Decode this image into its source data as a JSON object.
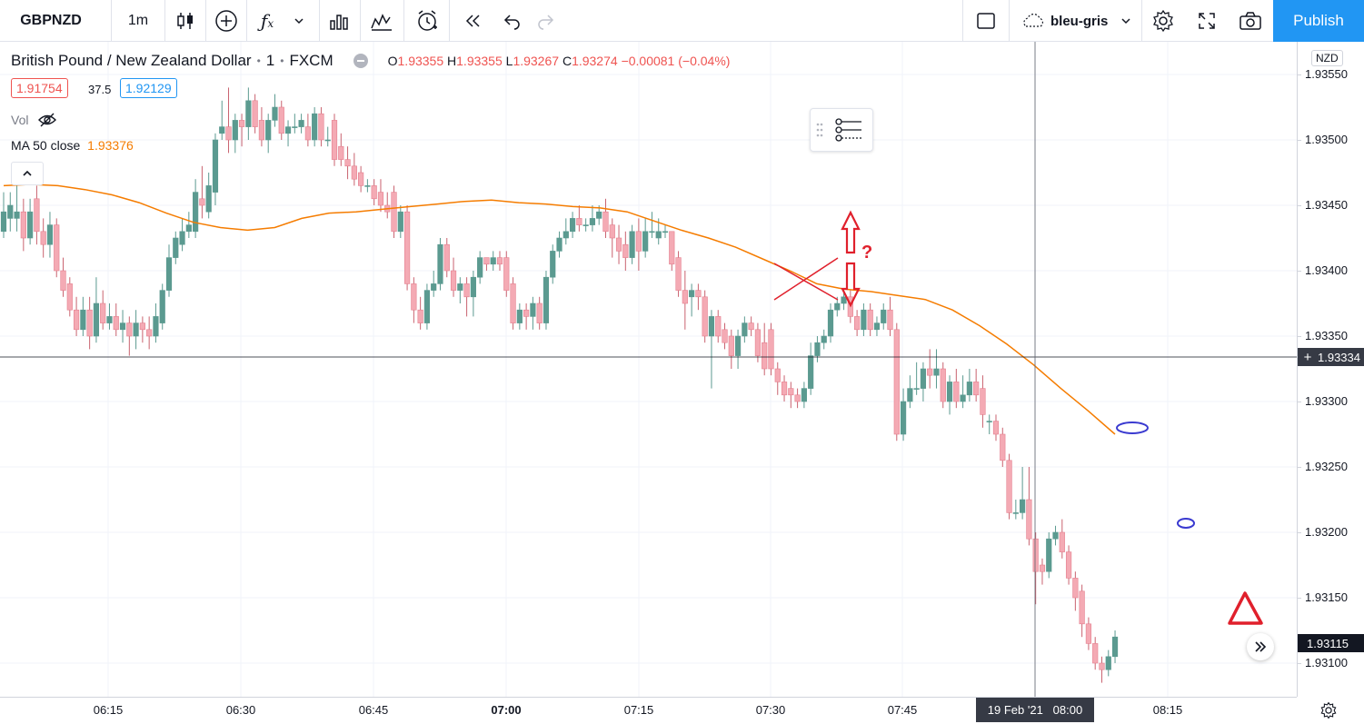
{
  "toolbar": {
    "symbol": "GBPNZD",
    "interval": "1m",
    "indicators_icon": "fx-icon",
    "layout_name": "bleu-gris",
    "publish_label": "Publish"
  },
  "legend": {
    "title": "British Pound / New Zealand Dollar",
    "interval": "1",
    "exchange": "FXCM",
    "o_label": "O",
    "o_value": "1.93355",
    "h_label": "H",
    "h_value": "1.93355",
    "l_label": "L",
    "l_value": "1.93267",
    "c_label": "C",
    "c_value": "1.93274",
    "change": "−0.00081 (−0.04%)",
    "sell_price": "1.91754",
    "spread": "37.5",
    "buy_price": "1.92129",
    "vol_label": "Vol",
    "ma_label": "MA 50 close",
    "ma_value": "1.93376"
  },
  "price_axis": {
    "currency": "NZD",
    "ticks": [
      "1.93550",
      "1.93500",
      "1.93450",
      "1.93400",
      "1.93350",
      "1.93300",
      "1.93250",
      "1.93200",
      "1.93150",
      "1.93100"
    ],
    "crosshair_price": "1.93334",
    "last_price": "1.93115"
  },
  "time_axis": {
    "ticks": [
      "06:15",
      "06:30",
      "06:45",
      "07:00",
      "07:15",
      "07:30",
      "07:45",
      "08:00",
      "08:15"
    ],
    "crosshair_label": "19 Feb '21   08:00"
  },
  "annotations": {
    "question_mark": "?"
  },
  "colors": {
    "up": "#5b9a90",
    "down": "#f4aab4",
    "ma": "#f57c00",
    "publish": "#2196f3",
    "annotation_red": "#e0202c",
    "annotation_blue": "#3a3ad0"
  },
  "chart_data": {
    "type": "candlestick",
    "symbol": "GBPNZD",
    "interval": "1m",
    "ylim": [
      1.93075,
      1.93575
    ],
    "x_ticks": [
      "06:15",
      "06:30",
      "06:45",
      "07:00",
      "07:15",
      "07:30",
      "07:45",
      "08:00",
      "08:15"
    ],
    "y_ticks": [
      1.9355,
      1.935,
      1.9345,
      1.934,
      1.9335,
      1.933,
      1.9325,
      1.932,
      1.9315,
      1.931
    ],
    "candles": [
      [
        1.9343,
        1.93445,
        1.93425,
        1.9346
      ],
      [
        1.9344,
        1.9345,
        1.9343,
        1.9346
      ],
      [
        1.9344,
        1.93445,
        1.9343,
        1.93465
      ],
      [
        1.93445,
        1.93425,
        1.93415,
        1.93455
      ],
      [
        1.93425,
        1.93445,
        1.9342,
        1.93455
      ],
      [
        1.93455,
        1.9343,
        1.9342,
        1.93465
      ],
      [
        1.9343,
        1.9342,
        1.9341,
        1.9344
      ],
      [
        1.9342,
        1.93435,
        1.9341,
        1.93445
      ],
      [
        1.93435,
        1.934,
        1.93395,
        1.9344
      ],
      [
        1.934,
        1.93385,
        1.9338,
        1.9341
      ],
      [
        1.9339,
        1.9337,
        1.93365,
        1.93395
      ],
      [
        1.9337,
        1.93355,
        1.9335,
        1.9338
      ],
      [
        1.93355,
        1.9337,
        1.9335,
        1.9338
      ],
      [
        1.9337,
        1.9335,
        1.9334,
        1.9338
      ],
      [
        1.9335,
        1.93375,
        1.93345,
        1.93395
      ],
      [
        1.93375,
        1.9336,
        1.93355,
        1.93385
      ],
      [
        1.9336,
        1.93365,
        1.93355,
        1.93375
      ],
      [
        1.93365,
        1.93355,
        1.9335,
        1.93375
      ],
      [
        1.93355,
        1.9336,
        1.93345,
        1.9337
      ],
      [
        1.9336,
        1.9335,
        1.93335,
        1.93365
      ],
      [
        1.9335,
        1.9336,
        1.9334,
        1.9337
      ],
      [
        1.9336,
        1.93355,
        1.93345,
        1.93365
      ],
      [
        1.93355,
        1.9335,
        1.9334,
        1.93365
      ],
      [
        1.9335,
        1.93365,
        1.93345,
        1.93375
      ],
      [
        1.9336,
        1.93385,
        1.93355,
        1.9339
      ],
      [
        1.93385,
        1.9341,
        1.9338,
        1.9342
      ],
      [
        1.9341,
        1.93425,
        1.93405,
        1.9343
      ],
      [
        1.9342,
        1.9343,
        1.93415,
        1.9344
      ],
      [
        1.9343,
        1.93435,
        1.93425,
        1.93445
      ],
      [
        1.9343,
        1.9346,
        1.93425,
        1.9347
      ],
      [
        1.93455,
        1.9345,
        1.9344,
        1.9348
      ],
      [
        1.93445,
        1.93465,
        1.9344,
        1.93475
      ],
      [
        1.9346,
        1.935,
        1.9345,
        1.93505
      ],
      [
        1.93505,
        1.9351,
        1.935,
        1.9353
      ],
      [
        1.9351,
        1.935,
        1.9349,
        1.9354
      ],
      [
        1.935,
        1.93515,
        1.9349,
        1.9352
      ],
      [
        1.93515,
        1.9351,
        1.93495,
        1.9352
      ],
      [
        1.9351,
        1.9353,
        1.935,
        1.9354
      ],
      [
        1.9353,
        1.9351,
        1.93505,
        1.93535
      ],
      [
        1.93515,
        1.935,
        1.93495,
        1.93525
      ],
      [
        1.935,
        1.93515,
        1.9349,
        1.9352
      ],
      [
        1.93515,
        1.93525,
        1.9351,
        1.93535
      ],
      [
        1.93525,
        1.93505,
        1.935,
        1.9353
      ],
      [
        1.93505,
        1.9351,
        1.93495,
        1.93515
      ],
      [
        1.9351,
        1.9351,
        1.93505,
        1.9352
      ],
      [
        1.9351,
        1.93515,
        1.93505,
        1.9352
      ],
      [
        1.9351,
        1.935,
        1.93495,
        1.9352
      ],
      [
        1.935,
        1.9352,
        1.93495,
        1.93525
      ],
      [
        1.9352,
        1.935,
        1.93495,
        1.93525
      ],
      [
        1.935,
        1.935,
        1.93495,
        1.9351
      ],
      [
        1.93515,
        1.93485,
        1.9348,
        1.9352
      ],
      [
        1.93495,
        1.93485,
        1.9348,
        1.93505
      ],
      [
        1.93485,
        1.9348,
        1.9347,
        1.93495
      ],
      [
        1.9348,
        1.9347,
        1.93465,
        1.9349
      ],
      [
        1.93475,
        1.93465,
        1.9346,
        1.9348
      ],
      [
        1.93465,
        1.93465,
        1.9346,
        1.9347
      ],
      [
        1.93465,
        1.93455,
        1.9345,
        1.9347
      ],
      [
        1.9346,
        1.9345,
        1.93445,
        1.9347
      ],
      [
        1.9345,
        1.93445,
        1.9344,
        1.9346
      ],
      [
        1.9346,
        1.9343,
        1.93425,
        1.93465
      ],
      [
        1.9343,
        1.93445,
        1.93425,
        1.9345
      ],
      [
        1.93445,
        1.9339,
        1.93385,
        1.9345
      ],
      [
        1.9339,
        1.9337,
        1.9336,
        1.93395
      ],
      [
        1.9337,
        1.9336,
        1.93355,
        1.9338
      ],
      [
        1.9336,
        1.93385,
        1.93355,
        1.9339
      ],
      [
        1.93385,
        1.9339,
        1.9338,
        1.934
      ],
      [
        1.9339,
        1.9342,
        1.93385,
        1.93425
      ],
      [
        1.9342,
        1.934,
        1.93395,
        1.93425
      ],
      [
        1.934,
        1.93385,
        1.9338,
        1.9341
      ],
      [
        1.93385,
        1.9339,
        1.93375,
        1.93395
      ],
      [
        1.9339,
        1.9338,
        1.93365,
        1.93395
      ],
      [
        1.9338,
        1.93395,
        1.93365,
        1.934
      ],
      [
        1.93395,
        1.9341,
        1.9339,
        1.93415
      ],
      [
        1.9341,
        1.93405,
        1.934,
        1.9341
      ],
      [
        1.93405,
        1.9341,
        1.934,
        1.93415
      ],
      [
        1.9341,
        1.93405,
        1.934,
        1.93415
      ],
      [
        1.9341,
        1.93385,
        1.9338,
        1.93415
      ],
      [
        1.9339,
        1.9336,
        1.93355,
        1.93395
      ],
      [
        1.9336,
        1.9337,
        1.93355,
        1.93375
      ],
      [
        1.9337,
        1.93365,
        1.93355,
        1.93375
      ],
      [
        1.93365,
        1.93375,
        1.93355,
        1.9338
      ],
      [
        1.93375,
        1.9336,
        1.93355,
        1.9338
      ],
      [
        1.9336,
        1.93395,
        1.93355,
        1.934
      ],
      [
        1.93395,
        1.93415,
        1.9339,
        1.9342
      ],
      [
        1.93415,
        1.93425,
        1.9341,
        1.9343
      ],
      [
        1.93425,
        1.9343,
        1.9342,
        1.9344
      ],
      [
        1.9343,
        1.9344,
        1.93425,
        1.93445
      ],
      [
        1.9344,
        1.93435,
        1.9343,
        1.9345
      ],
      [
        1.93435,
        1.93435,
        1.9343,
        1.9344
      ],
      [
        1.93435,
        1.9344,
        1.9343,
        1.9345
      ],
      [
        1.9344,
        1.93445,
        1.93435,
        1.9345
      ],
      [
        1.93445,
        1.9343,
        1.93425,
        1.93455
      ],
      [
        1.93435,
        1.93425,
        1.9341,
        1.9344
      ],
      [
        1.93425,
        1.93415,
        1.93405,
        1.93435
      ],
      [
        1.9342,
        1.9341,
        1.934,
        1.9343
      ],
      [
        1.9341,
        1.9343,
        1.93405,
        1.93435
      ],
      [
        1.9343,
        1.93415,
        1.934,
        1.9344
      ],
      [
        1.93415,
        1.9343,
        1.9341,
        1.9344
      ],
      [
        1.9343,
        1.9343,
        1.93425,
        1.93445
      ],
      [
        1.93425,
        1.9343,
        1.9342,
        1.9344
      ],
      [
        1.9343,
        1.9343,
        1.93425,
        1.93435
      ],
      [
        1.9343,
        1.93405,
        1.934,
        1.9343
      ],
      [
        1.9341,
        1.93385,
        1.9338,
        1.93415
      ],
      [
        1.93385,
        1.93375,
        1.93355,
        1.934
      ],
      [
        1.9338,
        1.93385,
        1.93365,
        1.9339
      ],
      [
        1.93385,
        1.9338,
        1.9337,
        1.9339
      ],
      [
        1.9338,
        1.9335,
        1.93345,
        1.93385
      ],
      [
        1.9335,
        1.93365,
        1.9331,
        1.9337
      ],
      [
        1.93365,
        1.9335,
        1.93345,
        1.9337
      ],
      [
        1.93355,
        1.93345,
        1.9334,
        1.9336
      ],
      [
        1.9335,
        1.93335,
        1.93325,
        1.93355
      ],
      [
        1.93335,
        1.9335,
        1.93325,
        1.93355
      ],
      [
        1.9335,
        1.9336,
        1.93345,
        1.93365
      ],
      [
        1.9336,
        1.93355,
        1.9335,
        1.93365
      ],
      [
        1.93355,
        1.93335,
        1.9333,
        1.9336
      ],
      [
        1.93345,
        1.93325,
        1.9332,
        1.9336
      ],
      [
        1.93355,
        1.93325,
        1.9332,
        1.9336
      ],
      [
        1.93325,
        1.93315,
        1.93305,
        1.9333
      ],
      [
        1.93315,
        1.93305,
        1.933,
        1.9332
      ],
      [
        1.9331,
        1.93305,
        1.93295,
        1.93315
      ],
      [
        1.93305,
        1.933,
        1.93295,
        1.9331
      ],
      [
        1.933,
        1.9331,
        1.93295,
        1.93315
      ],
      [
        1.9331,
        1.93335,
        1.93305,
        1.93345
      ],
      [
        1.93335,
        1.93345,
        1.9333,
        1.9335
      ],
      [
        1.93345,
        1.9335,
        1.9334,
        1.93355
      ],
      [
        1.9335,
        1.9337,
        1.93345,
        1.93375
      ],
      [
        1.9337,
        1.93375,
        1.93365,
        1.9338
      ],
      [
        1.93375,
        1.9338,
        1.9337,
        1.93385
      ],
      [
        1.9338,
        1.93365,
        1.9336,
        1.93385
      ],
      [
        1.93365,
        1.93355,
        1.9335,
        1.9337
      ],
      [
        1.93355,
        1.9337,
        1.9335,
        1.93375
      ],
      [
        1.9337,
        1.93355,
        1.9335,
        1.93375
      ],
      [
        1.93355,
        1.9336,
        1.9335,
        1.93365
      ],
      [
        1.9336,
        1.9337,
        1.93355,
        1.93375
      ],
      [
        1.9337,
        1.93355,
        1.9335,
        1.9338
      ],
      [
        1.93355,
        1.93275,
        1.9327,
        1.9336
      ],
      [
        1.93275,
        1.933,
        1.9327,
        1.9331
      ],
      [
        1.933,
        1.9331,
        1.93295,
        1.9332
      ],
      [
        1.9331,
        1.9331,
        1.93305,
        1.9333
      ],
      [
        1.9331,
        1.93325,
        1.933,
        1.9333
      ],
      [
        1.93325,
        1.9332,
        1.9331,
        1.9334
      ],
      [
        1.9332,
        1.93325,
        1.9331,
        1.9334
      ],
      [
        1.93325,
        1.933,
        1.93295,
        1.9333
      ],
      [
        1.933,
        1.93315,
        1.9329,
        1.9332
      ],
      [
        1.93315,
        1.933,
        1.93295,
        1.93325
      ],
      [
        1.933,
        1.93305,
        1.93295,
        1.9332
      ],
      [
        1.93305,
        1.93315,
        1.933,
        1.93325
      ],
      [
        1.93315,
        1.93305,
        1.933,
        1.93325
      ],
      [
        1.9331,
        1.9329,
        1.9328,
        1.9332
      ],
      [
        1.93285,
        1.93285,
        1.93275,
        1.9329
      ],
      [
        1.93285,
        1.93275,
        1.9327,
        1.9329
      ],
      [
        1.93275,
        1.93255,
        1.9325,
        1.9328
      ],
      [
        1.93255,
        1.93215,
        1.9321,
        1.9326
      ],
      [
        1.93215,
        1.93215,
        1.9321,
        1.93225
      ],
      [
        1.93215,
        1.93225,
        1.9321,
        1.9325
      ],
      [
        1.93225,
        1.93195,
        1.9319,
        1.9325
      ],
      [
        1.93195,
        1.9317,
        1.93145,
        1.932
      ],
      [
        1.93175,
        1.9317,
        1.9316,
        1.9318
      ],
      [
        1.9317,
        1.93195,
        1.93165,
        1.932
      ],
      [
        1.93195,
        1.932,
        1.9319,
        1.93205
      ],
      [
        1.932,
        1.93185,
        1.9318,
        1.9321
      ],
      [
        1.93185,
        1.93165,
        1.9316,
        1.9319
      ],
      [
        1.93165,
        1.9315,
        1.9314,
        1.9317
      ],
      [
        1.93155,
        1.9313,
        1.9312,
        1.9316
      ],
      [
        1.9313,
        1.93115,
        1.9311,
        1.93135
      ],
      [
        1.93115,
        1.931,
        1.93095,
        1.9312
      ],
      [
        1.931,
        1.93095,
        1.93085,
        1.93105
      ],
      [
        1.93095,
        1.93105,
        1.9309,
        1.9311
      ],
      [
        1.93105,
        1.9312,
        1.931,
        1.93125
      ]
    ],
    "ma_series": {
      "name": "MA 50 close",
      "values": [
        1.93465,
        1.93466,
        1.93465,
        1.93462,
        1.93458,
        1.93452,
        1.93444,
        1.93437,
        1.93433,
        1.93431,
        1.93433,
        1.9344,
        1.93444,
        1.93445,
        1.93447,
        1.93449,
        1.93451,
        1.93453,
        1.93454,
        1.93452,
        1.93451,
        1.93449,
        1.93448,
        1.93445,
        1.93438,
        1.93431,
        1.93425,
        1.93418,
        1.93409,
        1.934,
        1.9339,
        1.93386,
        1.93384,
        1.93381,
        1.93378,
        1.9337,
        1.93358,
        1.93344,
        1.93328,
        1.9331,
        1.93293,
        1.93275
      ]
    }
  }
}
